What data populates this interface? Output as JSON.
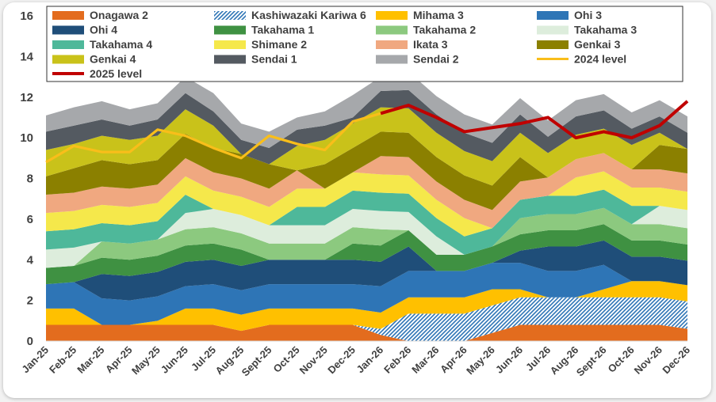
{
  "chart_data": {
    "type": "area",
    "stacked": true,
    "title": "",
    "xlabel": "",
    "ylabel": "",
    "ylim": [
      0,
      16
    ],
    "yticks": [
      0,
      2,
      4,
      6,
      8,
      10,
      12,
      14,
      16
    ],
    "grid": false,
    "legend_position": "top",
    "categories": [
      "Jan-25",
      "Feb-25",
      "Mar-25",
      "Apr-25",
      "May-25",
      "Jun-25",
      "Jul-25",
      "Aug-25",
      "Sept-25",
      "Oct-25",
      "Nov-25",
      "Dec-25",
      "Jan-26",
      "Feb-26",
      "Mar-26",
      "Apr-26",
      "May-26",
      "Jun-26",
      "Jul-26",
      "Aug-26",
      "Sept-26",
      "Oct-26",
      "Nov-26",
      "Dec-26"
    ],
    "series": [
      {
        "name": "Onagawa 2",
        "color": "#E36C1E",
        "values": [
          0.8,
          0.8,
          0.8,
          0.8,
          0.8,
          0.8,
          0.8,
          0.5,
          0.8,
          0.8,
          0.8,
          0.8,
          0.3,
          0,
          0,
          0,
          0.4,
          0.8,
          0.8,
          0.8,
          0.8,
          0.8,
          0.8,
          0.6
        ]
      },
      {
        "name": "Kashiwazaki Kariwa 6",
        "color": "#2E75B6",
        "pattern": "hatch",
        "values": [
          0,
          0,
          0,
          0,
          0,
          0,
          0,
          0,
          0,
          0,
          0,
          0,
          0.3,
          1.35,
          1.35,
          1.35,
          1.35,
          1.35,
          1.35,
          1.35,
          1.35,
          1.35,
          1.35,
          1.35
        ]
      },
      {
        "name": "Mihama 3",
        "color": "#FFC000",
        "values": [
          0.8,
          0.8,
          0,
          0,
          0.2,
          0.8,
          0.8,
          0.8,
          0.8,
          0.8,
          0.8,
          0.8,
          0.8,
          0.8,
          0.8,
          0.8,
          0.8,
          0.4,
          0,
          0,
          0.4,
          0.8,
          0.8,
          0.8
        ]
      },
      {
        "name": "Ohi 3",
        "color": "#2E75B6",
        "values": [
          1.2,
          1.3,
          1.3,
          1.2,
          1.2,
          1.1,
          1.2,
          1.2,
          1.2,
          1.2,
          1.2,
          1.2,
          1.3,
          1.3,
          1.3,
          1.3,
          1.3,
          1.3,
          1.3,
          1.3,
          1.2,
          0,
          0,
          0
        ]
      },
      {
        "name": "Ohi 4",
        "color": "#1F4E79",
        "values": [
          0,
          0,
          1.2,
          1.2,
          1.2,
          1.2,
          1.2,
          1.2,
          1.2,
          1.2,
          1.2,
          1.2,
          1.2,
          1.2,
          0,
          0,
          0,
          0.6,
          1.2,
          1.2,
          1.2,
          1.2,
          1.2,
          1.2
        ]
      },
      {
        "name": "Takahama 1",
        "color": "#3F9142",
        "values": [
          0.8,
          0.8,
          0.8,
          0.8,
          0.8,
          0.8,
          0.8,
          0.8,
          0,
          0,
          0,
          0.8,
          0.8,
          0.8,
          0.8,
          0.8,
          0.8,
          0.8,
          0.8,
          0.8,
          0.8,
          0.8,
          0.8,
          0.8
        ]
      },
      {
        "name": "Takahama 2",
        "color": "#8CC97F",
        "values": [
          0,
          0,
          0.8,
          0.8,
          0.8,
          0.8,
          0.8,
          0.8,
          0.8,
          0.8,
          0.8,
          0.8,
          0.8,
          0,
          0,
          0,
          0,
          0.8,
          0.8,
          0.8,
          0.8,
          0.8,
          0.8,
          0.8
        ]
      },
      {
        "name": "Takahama 3",
        "color": "#DDEDDC",
        "values": [
          0.9,
          0.9,
          0,
          0,
          0,
          0.8,
          0.9,
          0.9,
          0.9,
          0.9,
          0.9,
          0.9,
          0.9,
          0.9,
          0.9,
          0,
          0,
          0,
          0,
          0,
          0,
          0,
          0.9,
          0.9
        ]
      },
      {
        "name": "Takahama 4",
        "color": "#4EB89A",
        "values": [
          0.9,
          0.9,
          0.9,
          0.9,
          0.9,
          0.9,
          0,
          0,
          0,
          0.9,
          0.9,
          0.9,
          0.9,
          0.9,
          0.9,
          0.9,
          0.9,
          0.9,
          0.9,
          0.9,
          0.9,
          0.9,
          0,
          0
        ]
      },
      {
        "name": "Shimane 2",
        "color": "#F5E84B",
        "values": [
          0.9,
          0.9,
          0.9,
          0.9,
          0.9,
          0.9,
          0.9,
          0.9,
          0.9,
          0.9,
          0.9,
          0.9,
          0.9,
          0.9,
          0.9,
          0.9,
          0,
          0,
          0,
          0.9,
          0.9,
          0.9,
          0.9,
          0.9
        ]
      },
      {
        "name": "Ikata 3",
        "color": "#F0A880",
        "values": [
          0.9,
          0.9,
          0.9,
          0.9,
          0.9,
          0.9,
          0.9,
          0.9,
          0.9,
          0.9,
          0,
          0,
          0.9,
          0.9,
          0.9,
          0.9,
          0.9,
          0.9,
          0.9,
          0.9,
          0.9,
          0.9,
          0.9,
          0.9
        ]
      },
      {
        "name": "Genkai 3",
        "color": "#8B8000",
        "values": [
          0.9,
          1.2,
          1.3,
          1.2,
          1.2,
          1.2,
          1.2,
          1.2,
          1.2,
          0,
          1.2,
          1.2,
          1.2,
          1.2,
          1.2,
          1.2,
          1.2,
          1.2,
          0,
          0,
          0,
          0,
          1.2,
          1.2
        ]
      },
      {
        "name": "Genkai 4",
        "color": "#C9C21A",
        "values": [
          1.3,
          1.2,
          1.2,
          1.2,
          1.2,
          1.2,
          1.1,
          0,
          0,
          1.2,
          1.2,
          1.2,
          1.2,
          1.2,
          1.2,
          1.2,
          1.2,
          1.2,
          1.2,
          1.2,
          1.2,
          1.2,
          0.6,
          0
        ]
      },
      {
        "name": "Sendai 1",
        "color": "#545A61",
        "values": [
          0.9,
          0.9,
          0.8,
          0.7,
          0.8,
          0.8,
          0.7,
          0.7,
          0.8,
          0.8,
          0.7,
          0.3,
          0.8,
          0.9,
          0.9,
          0.9,
          0.9,
          0.9,
          0.8,
          0.9,
          0.9,
          0.8,
          0.8,
          0.8
        ]
      },
      {
        "name": "Sendai 2",
        "color": "#A6A8AB",
        "values": [
          0.8,
          0.9,
          0.9,
          0.8,
          0.8,
          0.8,
          0.9,
          0.8,
          0.8,
          0.6,
          0.7,
          1.1,
          0.7,
          0.9,
          0.9,
          0.9,
          0.9,
          0.8,
          0.8,
          0.8,
          0.8,
          0.8,
          0.8,
          0.8
        ]
      }
    ],
    "lines": [
      {
        "name": "2024 level",
        "color": "#F9BE1A",
        "x_start": 0,
        "values": [
          8.8,
          9.6,
          9.3,
          9.3,
          10.4,
          10.1,
          9.5,
          9.0,
          10.1,
          9.7,
          9.4,
          10.8,
          11.2
        ]
      },
      {
        "name": "2025 level",
        "color": "#C00000",
        "x_start": 12,
        "values": [
          11.2,
          11.6,
          11.0,
          10.3,
          10.5,
          10.7,
          11.0,
          10.0,
          10.3,
          10.0,
          10.6,
          11.8
        ]
      }
    ]
  }
}
